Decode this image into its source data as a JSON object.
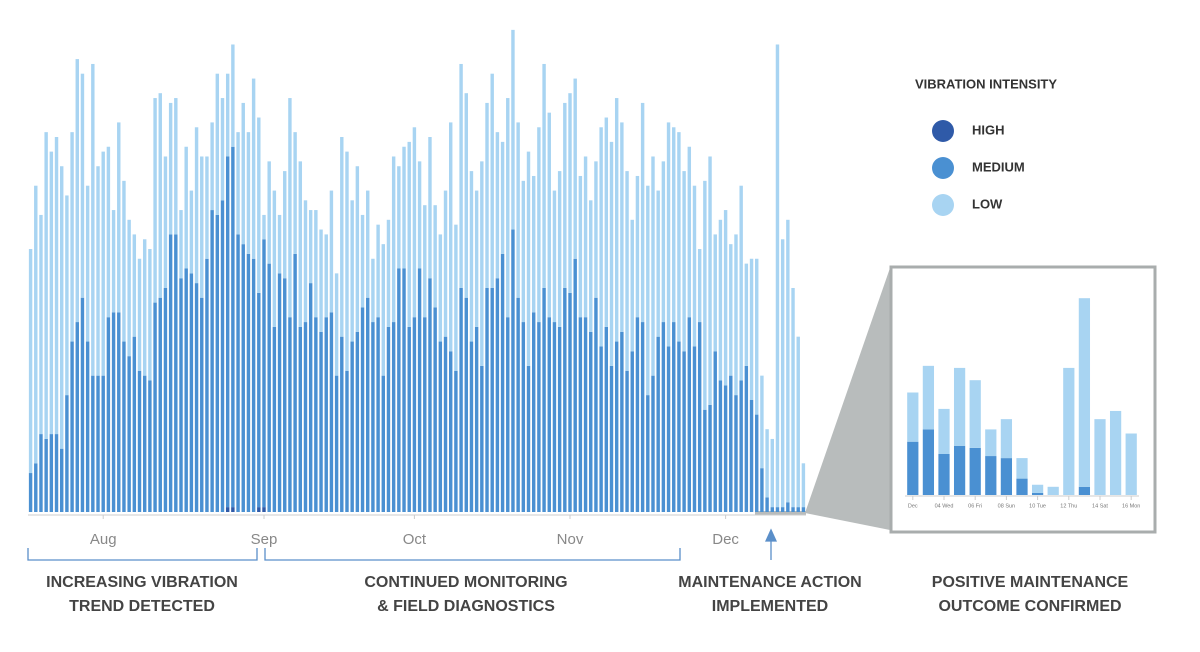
{
  "chart_data": [
    {
      "type": "bar",
      "stacked": true,
      "legend_title": "VIBRATION INTENSITY",
      "ylim": [
        0,
        100
      ],
      "xticks": [
        {
          "value": 14,
          "label": "Aug"
        },
        {
          "value": 45,
          "label": "Sep"
        },
        {
          "value": 74,
          "label": "Oct"
        },
        {
          "value": 104,
          "label": "Nov"
        },
        {
          "value": 134,
          "label": "Dec"
        }
      ],
      "series": [
        {
          "name": "HIGH",
          "color": "#2f5aa8",
          "values": [
            0,
            0,
            0,
            0,
            0,
            0,
            0,
            0,
            0,
            0,
            0,
            0,
            0,
            0,
            0,
            0,
            0,
            0,
            0,
            0,
            0,
            0,
            0,
            0,
            0,
            0,
            0,
            0,
            0,
            0,
            0,
            0,
            0,
            0,
            0,
            0,
            0,
            0,
            1,
            1,
            0,
            0,
            0,
            0,
            1,
            1,
            0,
            0,
            0,
            0,
            0,
            0,
            0,
            0,
            0,
            0,
            0,
            0,
            0,
            0,
            0,
            0,
            0,
            0,
            0,
            0,
            0,
            0,
            0,
            0,
            0,
            0,
            0,
            0,
            0,
            0,
            0,
            0,
            0,
            0,
            0,
            0,
            0,
            0,
            0,
            0,
            0,
            0,
            0,
            0,
            0,
            0,
            0,
            0,
            0,
            0,
            0,
            0,
            0,
            0,
            0,
            0,
            0,
            0,
            0,
            0,
            0,
            0,
            0,
            0,
            0,
            0,
            0,
            0,
            0,
            0,
            0,
            0,
            0,
            0,
            0,
            0,
            0,
            0,
            0,
            0,
            0,
            0,
            0,
            0,
            0,
            0,
            0,
            0,
            0,
            0,
            0,
            0,
            0,
            0,
            0,
            0,
            0,
            0,
            0,
            0,
            0,
            0,
            0,
            0
          ]
        },
        {
          "name": "MEDIUM",
          "color": "#4a90d2",
          "values": [
            8,
            10,
            16,
            15,
            16,
            16,
            13,
            24,
            35,
            39,
            44,
            35,
            28,
            28,
            28,
            40,
            41,
            41,
            35,
            32,
            36,
            29,
            28,
            27,
            43,
            44,
            46,
            57,
            57,
            48,
            50,
            49,
            47,
            44,
            52,
            62,
            61,
            64,
            72,
            74,
            57,
            55,
            53,
            52,
            44,
            55,
            51,
            38,
            49,
            48,
            40,
            53,
            38,
            39,
            47,
            40,
            37,
            40,
            41,
            28,
            36,
            29,
            35,
            37,
            42,
            44,
            39,
            40,
            28,
            38,
            39,
            50,
            50,
            38,
            40,
            50,
            40,
            48,
            42,
            35,
            36,
            33,
            29,
            46,
            44,
            35,
            38,
            30,
            46,
            46,
            48,
            53,
            40,
            58,
            44,
            39,
            30,
            41,
            39,
            46,
            40,
            39,
            38,
            46,
            45,
            52,
            40,
            40,
            37,
            44,
            34,
            38,
            30,
            35,
            37,
            29,
            33,
            40,
            39,
            24,
            28,
            36,
            39,
            34,
            39,
            35,
            33,
            40,
            34,
            39,
            21,
            22,
            33,
            27,
            26,
            28,
            24,
            27,
            30,
            23,
            20,
            9,
            3,
            1,
            1,
            1,
            2,
            1,
            1,
            1
          ]
        },
        {
          "name": "LOW",
          "color": "#a8d4f2",
          "values": [
            46,
            57,
            45,
            63,
            58,
            61,
            58,
            41,
            43,
            54,
            46,
            32,
            64,
            43,
            46,
            35,
            21,
            39,
            33,
            28,
            21,
            23,
            28,
            27,
            42,
            42,
            27,
            27,
            28,
            14,
            25,
            17,
            32,
            29,
            21,
            18,
            29,
            21,
            17,
            21,
            21,
            29,
            25,
            37,
            36,
            5,
            21,
            28,
            12,
            22,
            45,
            25,
            34,
            25,
            15,
            22,
            21,
            17,
            25,
            21,
            41,
            45,
            29,
            34,
            19,
            22,
            13,
            19,
            27,
            22,
            34,
            21,
            25,
            38,
            39,
            22,
            23,
            29,
            21,
            22,
            30,
            47,
            30,
            46,
            42,
            35,
            28,
            42,
            38,
            44,
            30,
            23,
            45,
            41,
            36,
            29,
            44,
            28,
            40,
            46,
            42,
            27,
            32,
            38,
            41,
            37,
            29,
            33,
            27,
            28,
            45,
            43,
            46,
            50,
            43,
            41,
            27,
            29,
            45,
            43,
            45,
            30,
            33,
            46,
            40,
            43,
            37,
            35,
            33,
            15,
            47,
            51,
            24,
            33,
            36,
            27,
            33,
            40,
            21,
            29,
            32,
            19,
            14,
            14,
            95,
            55,
            58,
            45,
            35,
            9
          ]
        }
      ]
    },
    {
      "type": "bar",
      "stacked": true,
      "ylim": [
        0,
        100
      ],
      "xticks": [
        {
          "value": 0,
          "label": "Dec"
        },
        {
          "value": 2,
          "label": "04 Wed"
        },
        {
          "value": 4,
          "label": "06 Fri"
        },
        {
          "value": 6,
          "label": "08 Sun"
        },
        {
          "value": 8,
          "label": "10 Tue"
        },
        {
          "value": 10,
          "label": "12 Thu"
        },
        {
          "value": 12,
          "label": "14 Sat"
        },
        {
          "value": 14,
          "label": "16 Mon"
        }
      ],
      "series": [
        {
          "name": "MEDIUM",
          "color": "#4a90d2",
          "values": [
            26,
            32,
            20,
            24,
            23,
            19,
            18,
            8,
            1,
            0,
            0,
            4,
            0,
            0,
            0
          ]
        },
        {
          "name": "LOW",
          "color": "#a8d4f2",
          "values": [
            24,
            31,
            22,
            38,
            33,
            13,
            19,
            10,
            4,
            4,
            62,
            92,
            37,
            41,
            30
          ]
        }
      ]
    }
  ],
  "annotations": [
    {
      "lines": [
        "INCREASING VIBRATION",
        "TREND DETECTED"
      ]
    },
    {
      "lines": [
        "CONTINUED MONITORING",
        "& FIELD DIAGNOSTICS"
      ]
    },
    {
      "lines": [
        "MAINTENANCE ACTION",
        "IMPLEMENTED"
      ]
    },
    {
      "lines": [
        "POSITIVE MAINTENANCE",
        "OUTCOME CONFIRMED"
      ]
    }
  ]
}
